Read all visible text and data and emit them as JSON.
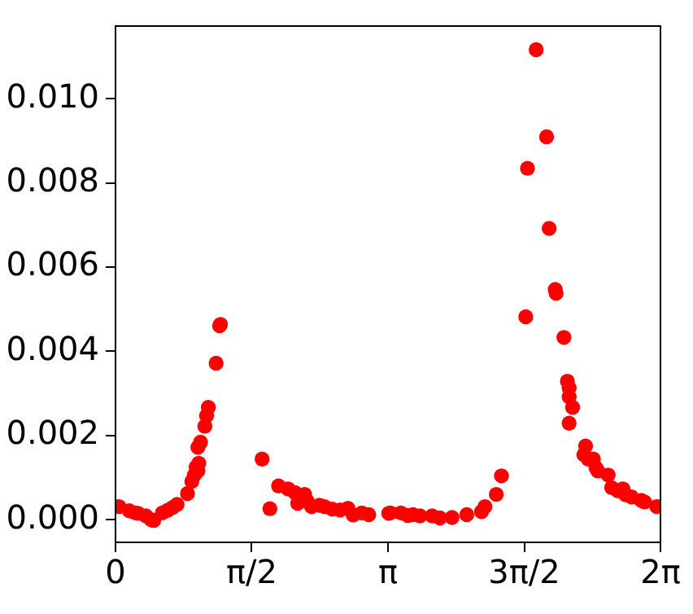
{
  "chart_data": {
    "type": "scatter",
    "marker": "circle",
    "grid": false,
    "legend": false,
    "series": [
      {
        "color": "#ff0000",
        "x": [
          0.04,
          0.16,
          0.23,
          0.26,
          0.35,
          0.41,
          0.44,
          0.54,
          0.6,
          0.66,
          0.71,
          0.83,
          0.88,
          0.91,
          0.93,
          0.95,
          0.96,
          0.95,
          0.98,
          1.03,
          1.05,
          1.07,
          1.16,
          1.2,
          1.21,
          1.69,
          1.78,
          1.88,
          1.99,
          2.07,
          2.1,
          2.18,
          2.21,
          2.26,
          2.35,
          2.41,
          2.5,
          2.59,
          2.68,
          2.74,
          2.84,
          2.92,
          3.15,
          3.17,
          3.29,
          3.37,
          3.43,
          3.51,
          3.65,
          3.74,
          3.88,
          4.05,
          4.22,
          4.26,
          4.39,
          4.45,
          4.73,
          4.75,
          4.85,
          4.97,
          5.0,
          5.07,
          5.08,
          5.17,
          5.21,
          5.23,
          5.23,
          5.27,
          5.23,
          5.42,
          5.4,
          5.45,
          5.51,
          5.54,
          5.56,
          5.68,
          5.72,
          5.79,
          5.85,
          5.88,
          5.95,
          6.06,
          6.1,
          6.24
        ],
        "values": [
          0.00031,
          0.00021,
          0.00016,
          0.00015,
          9e-05,
          0.0,
          -2e-05,
          0.00016,
          0.00022,
          0.00029,
          0.00036,
          0.00062,
          0.00091,
          0.00106,
          0.00125,
          0.00116,
          0.00134,
          0.00172,
          0.00184,
          0.00222,
          0.00247,
          0.00267,
          0.00372,
          0.00461,
          0.00464,
          0.00144,
          0.00026,
          0.0008,
          0.00073,
          0.00064,
          0.00039,
          0.0006,
          0.00044,
          0.00031,
          0.00034,
          0.00031,
          0.00025,
          0.00023,
          0.00027,
          0.00011,
          0.00016,
          0.00012,
          0.00015,
          0.00016,
          0.00016,
          0.0001,
          0.00012,
          9e-05,
          9e-05,
          4e-05,
          5e-05,
          0.00012,
          0.00019,
          0.00031,
          0.0006,
          0.00104,
          0.00482,
          0.00835,
          0.01117,
          0.0091,
          0.00692,
          0.00547,
          0.00538,
          0.00433,
          0.00329,
          0.00313,
          0.00292,
          0.00267,
          0.00229,
          0.00175,
          0.00154,
          0.00144,
          0.00144,
          0.00123,
          0.00116,
          0.00106,
          0.00076,
          0.00069,
          0.00073,
          0.00059,
          0.00054,
          0.00046,
          0.00042,
          0.00031
        ]
      }
    ],
    "xlim": [
      0,
      6.283185
    ],
    "xticks": [
      0,
      {
        "value": 1.570796,
        "label": "π/2"
      },
      {
        "value": 3.141593,
        "label": "π"
      },
      {
        "value": 4.712389,
        "label": "3π/2"
      },
      {
        "value": 6.283185,
        "label": "2π"
      }
    ],
    "ylim": [
      -0.00054,
      0.01173
    ],
    "yticks": [
      {
        "value": 0,
        "label": "0.000"
      },
      {
        "value": 0.002,
        "label": "0.002"
      },
      {
        "value": 0.004,
        "label": "0.004"
      },
      {
        "value": 0.006,
        "label": "0.006"
      },
      {
        "value": 0.008,
        "label": "0.008"
      },
      {
        "value": 0.01,
        "label": "0.010"
      }
    ]
  }
}
